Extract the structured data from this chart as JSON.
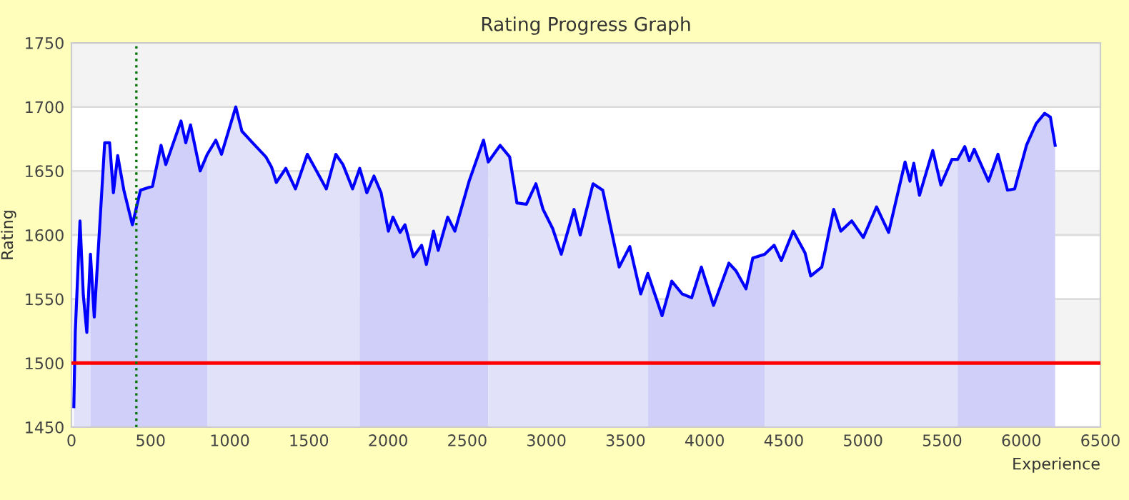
{
  "chart_data": {
    "type": "line",
    "title": "Rating Progress Graph",
    "xlabel": "Experience",
    "ylabel": "Rating",
    "xlim": [
      0,
      6500
    ],
    "xticks": [
      0,
      500,
      1000,
      1500,
      2000,
      2500,
      3000,
      3500,
      4000,
      4500,
      5000,
      5500,
      6000,
      6500
    ],
    "ylim": [
      1450,
      1750
    ],
    "yticks": [
      1450,
      1500,
      1550,
      1600,
      1650,
      1700,
      1750
    ],
    "grid": "y",
    "legend": false,
    "marker": "none",
    "line_style": "solid",
    "ref_lines": [
      {
        "axis": "y",
        "value": 1500,
        "color": "#ff0000",
        "line_style": "solid"
      },
      {
        "axis": "x",
        "value": 410,
        "color": "#007700",
        "line_style": "dotted"
      }
    ],
    "series": [
      {
        "type": "area",
        "color": "#e1e1fa",
        "x": [
          15,
          24,
          54,
          75,
          97,
          120
        ],
        "values": [
          1466,
          1524,
          1611,
          1553,
          1524,
          1585
        ]
      },
      {
        "type": "area",
        "color": "#cfcff9",
        "x": [
          120,
          144,
          210,
          241,
          265,
          292,
          331,
          385,
          436,
          512,
          566,
          596,
          692,
          722,
          752,
          813,
          858
        ],
        "values": [
          1585,
          1536,
          1672,
          1672,
          1633,
          1662,
          1635,
          1608,
          1635,
          1638,
          1670,
          1655,
          1689,
          1672,
          1686,
          1650,
          1663
        ]
      },
      {
        "type": "area",
        "color": "#e1e1fa",
        "x": [
          858,
          912,
          948,
          1038,
          1077,
          1144,
          1228,
          1264,
          1294,
          1354,
          1415,
          1490,
          1535,
          1610,
          1670,
          1715,
          1776,
          1821
        ],
        "values": [
          1663,
          1674,
          1663,
          1700,
          1681,
          1672,
          1661,
          1653,
          1641,
          1652,
          1636,
          1663,
          1653,
          1636,
          1663,
          1655,
          1636,
          1652
        ]
      },
      {
        "type": "area",
        "color": "#cfcff9",
        "x": [
          1821,
          1866,
          1911,
          1956,
          2002,
          2031,
          2076,
          2107,
          2160,
          2212,
          2242,
          2287,
          2317,
          2377,
          2422,
          2512,
          2603,
          2633
        ],
        "values": [
          1652,
          1633,
          1646,
          1633,
          1603,
          1614,
          1602,
          1608,
          1583,
          1592,
          1577,
          1603,
          1588,
          1614,
          1603,
          1642,
          1674,
          1657
        ]
      },
      {
        "type": "area",
        "color": "#e1e1fa",
        "x": [
          2633,
          2708,
          2768,
          2814,
          2874,
          2934,
          2979,
          3040,
          3094,
          3175,
          3214,
          3295,
          3356,
          3415,
          3460,
          3527,
          3596,
          3641
        ],
        "values": [
          1657,
          1670,
          1661,
          1625,
          1624,
          1640,
          1620,
          1605,
          1585,
          1620,
          1600,
          1640,
          1635,
          1601,
          1575,
          1591,
          1554,
          1570
        ]
      },
      {
        "type": "area",
        "color": "#cfcff9",
        "x": [
          3641,
          3731,
          3792,
          3858,
          3918,
          3979,
          4056,
          4153,
          4198,
          4261,
          4304,
          4379
        ],
        "values": [
          1570,
          1537,
          1564,
          1554,
          1551,
          1575,
          1545,
          1578,
          1572,
          1558,
          1582,
          1585
        ]
      },
      {
        "type": "area",
        "color": "#e1e1fa",
        "x": [
          4379,
          4439,
          4484,
          4559,
          4634,
          4670,
          4740,
          4815,
          4860,
          4929,
          5002,
          5086,
          5162,
          5266,
          5297,
          5321,
          5357,
          5441,
          5492,
          5562,
          5598
        ],
        "values": [
          1585,
          1592,
          1580,
          1603,
          1586,
          1568,
          1575,
          1620,
          1603,
          1611,
          1598,
          1622,
          1602,
          1657,
          1642,
          1656,
          1631,
          1666,
          1639,
          1659,
          1659
        ]
      },
      {
        "type": "area",
        "color": "#cfcff9",
        "x": [
          5598,
          5643,
          5672,
          5703,
          5793,
          5853,
          5913,
          5958,
          6033,
          6094,
          6148,
          6184,
          6214
        ],
        "values": [
          1659,
          1669,
          1658,
          1667,
          1642,
          1663,
          1635,
          1636,
          1670,
          1687,
          1695,
          1692,
          1670
        ]
      },
      {
        "color": "#0000ff",
        "x": [
          15,
          24,
          54,
          75,
          97,
          120,
          144,
          210,
          241,
          265,
          292,
          331,
          385,
          436,
          512,
          566,
          596,
          692,
          722,
          752,
          813,
          858,
          912,
          948,
          1038,
          1077,
          1144,
          1228,
          1264,
          1294,
          1354,
          1415,
          1490,
          1535,
          1610,
          1670,
          1715,
          1776,
          1821,
          1866,
          1911,
          1956,
          2002,
          2031,
          2076,
          2107,
          2160,
          2212,
          2242,
          2287,
          2317,
          2377,
          2422,
          2512,
          2603,
          2633,
          2708,
          2768,
          2814,
          2874,
          2934,
          2979,
          3040,
          3094,
          3175,
          3214,
          3295,
          3356,
          3415,
          3460,
          3527,
          3596,
          3641,
          3731,
          3792,
          3858,
          3918,
          3979,
          4056,
          4153,
          4198,
          4261,
          4304,
          4379,
          4439,
          4484,
          4559,
          4634,
          4670,
          4740,
          4815,
          4860,
          4929,
          5002,
          5086,
          5162,
          5266,
          5297,
          5321,
          5357,
          5441,
          5492,
          5562,
          5598,
          5643,
          5672,
          5703,
          5793,
          5853,
          5913,
          5958,
          6033,
          6094,
          6148,
          6184,
          6214
        ],
        "values": [
          1466,
          1524,
          1611,
          1553,
          1524,
          1585,
          1536,
          1672,
          1672,
          1633,
          1662,
          1635,
          1608,
          1635,
          1638,
          1670,
          1655,
          1689,
          1672,
          1686,
          1650,
          1663,
          1674,
          1663,
          1700,
          1681,
          1672,
          1661,
          1653,
          1641,
          1652,
          1636,
          1663,
          1653,
          1636,
          1663,
          1655,
          1636,
          1652,
          1633,
          1646,
          1633,
          1603,
          1614,
          1602,
          1608,
          1583,
          1592,
          1577,
          1603,
          1588,
          1614,
          1603,
          1642,
          1674,
          1657,
          1670,
          1661,
          1625,
          1624,
          1640,
          1620,
          1605,
          1585,
          1620,
          1600,
          1640,
          1635,
          1601,
          1575,
          1591,
          1554,
          1570,
          1537,
          1564,
          1554,
          1551,
          1575,
          1545,
          1578,
          1572,
          1558,
          1582,
          1585,
          1592,
          1580,
          1603,
          1586,
          1568,
          1575,
          1620,
          1603,
          1611,
          1598,
          1622,
          1602,
          1657,
          1642,
          1656,
          1631,
          1666,
          1639,
          1659,
          1659,
          1669,
          1658,
          1667,
          1642,
          1663,
          1635,
          1636,
          1670,
          1687,
          1695,
          1692,
          1670
        ]
      }
    ]
  }
}
